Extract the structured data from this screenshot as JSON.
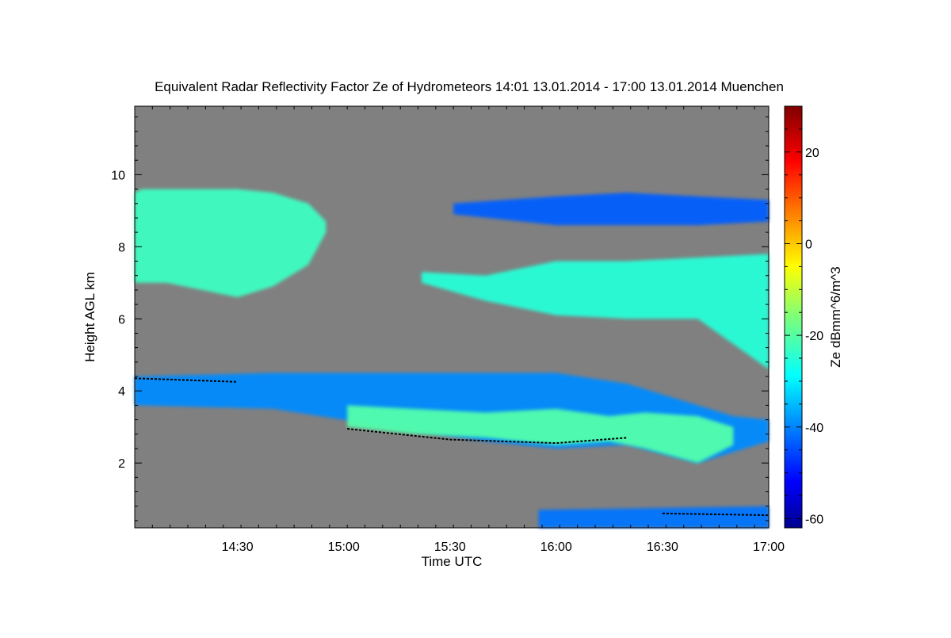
{
  "chart_data": {
    "type": "heatmap",
    "title": "Equivalent Radar Reflectivity Factor Ze of Hydrometeors   14:01 13.01.2014 - 17:00 13.01.2014 Muenchen",
    "xlabel": "Time UTC",
    "ylabel": "Height AGL km",
    "colorbar_label": "Ze dBmm^6/m^3",
    "x_range_minutes_utc": [
      841,
      1020
    ],
    "xlim_labels": [
      "14:01",
      "17:00"
    ],
    "y_range_km": [
      0.2,
      11.9
    ],
    "color_range_dbz": [
      -62,
      30
    ],
    "x_ticks": [
      {
        "label": "14:30",
        "value": 870
      },
      {
        "label": "15:00",
        "value": 900
      },
      {
        "label": "15:30",
        "value": 930
      },
      {
        "label": "16:00",
        "value": 960
      },
      {
        "label": "16:30",
        "value": 990
      },
      {
        "label": "17:00",
        "value": 1020
      }
    ],
    "y_ticks": [
      {
        "label": "2",
        "value": 2
      },
      {
        "label": "4",
        "value": 4
      },
      {
        "label": "6",
        "value": 6
      },
      {
        "label": "8",
        "value": 8
      },
      {
        "label": "10",
        "value": 10
      }
    ],
    "colorbar_ticks": [
      {
        "label": "20",
        "value": 20
      },
      {
        "label": "0",
        "value": 0
      },
      {
        "label": "-20",
        "value": -20
      },
      {
        "label": "-40",
        "value": -40
      },
      {
        "label": "-60",
        "value": -60
      }
    ],
    "background_color": "#808080",
    "colormap": "jet",
    "echo_layers": [
      {
        "name": "upper-cirrus-west",
        "t": [
          841,
          843,
          850,
          860,
          870,
          880,
          890,
          895
        ],
        "top_km": [
          9.5,
          9.6,
          9.6,
          9.6,
          9.6,
          9.5,
          9.2,
          8.7
        ],
        "base_km": [
          7.0,
          7.0,
          7.0,
          6.8,
          6.6,
          6.9,
          7.5,
          8.4
        ],
        "ze_dbz": -22
      },
      {
        "name": "upper-cirrus-east",
        "t": [
          922,
          940,
          960,
          980,
          1000,
          1020
        ],
        "top_km": [
          7.3,
          7.2,
          7.6,
          7.6,
          7.7,
          7.8
        ],
        "base_km": [
          7.0,
          6.5,
          6.1,
          6.0,
          6.0,
          4.6
        ],
        "ze_dbz": -24
      },
      {
        "name": "high-thin-layer",
        "t": [
          931,
          960,
          980,
          1000,
          1020
        ],
        "top_km": [
          9.2,
          9.4,
          9.5,
          9.4,
          9.3
        ],
        "base_km": [
          8.9,
          8.6,
          8.6,
          8.6,
          8.7
        ],
        "ze_dbz": -42
      },
      {
        "name": "mid-layer",
        "t": [
          841,
          880,
          920,
          940,
          960,
          980,
          1000,
          1010,
          1020
        ],
        "top_km": [
          4.4,
          4.5,
          4.5,
          4.5,
          4.5,
          4.2,
          3.6,
          3.3,
          3.2
        ],
        "base_km": [
          3.6,
          3.5,
          2.9,
          2.6,
          2.4,
          2.5,
          2.0,
          2.3,
          2.6
        ],
        "ze_dbz": -38
      },
      {
        "name": "mid-layer-core",
        "t": [
          901,
          920,
          940,
          960,
          975,
          985,
          1000,
          1010
        ],
        "top_km": [
          3.6,
          3.5,
          3.4,
          3.5,
          3.3,
          3.4,
          3.3,
          3.0
        ],
        "base_km": [
          3.0,
          2.8,
          2.7,
          2.5,
          2.6,
          2.4,
          2.0,
          2.5
        ],
        "ze_dbz": -20
      },
      {
        "name": "surface-precipitation",
        "t": [
          955,
          1020
        ],
        "top_km": [
          0.7,
          0.8
        ],
        "base_km": [
          0.2,
          0.2
        ],
        "ze_dbz": -40
      }
    ],
    "melting_layer_trace_km": [
      {
        "t": 841,
        "v": 4.35
      },
      {
        "t": 870,
        "v": 4.25
      },
      {
        "t": 901,
        "v": 2.95
      },
      {
        "t": 930,
        "v": 2.65
      },
      {
        "t": 960,
        "v": 2.55
      },
      {
        "t": 980,
        "v": 2.7
      },
      {
        "t": 990,
        "v": 0.6
      },
      {
        "t": 1020,
        "v": 0.55
      }
    ]
  }
}
